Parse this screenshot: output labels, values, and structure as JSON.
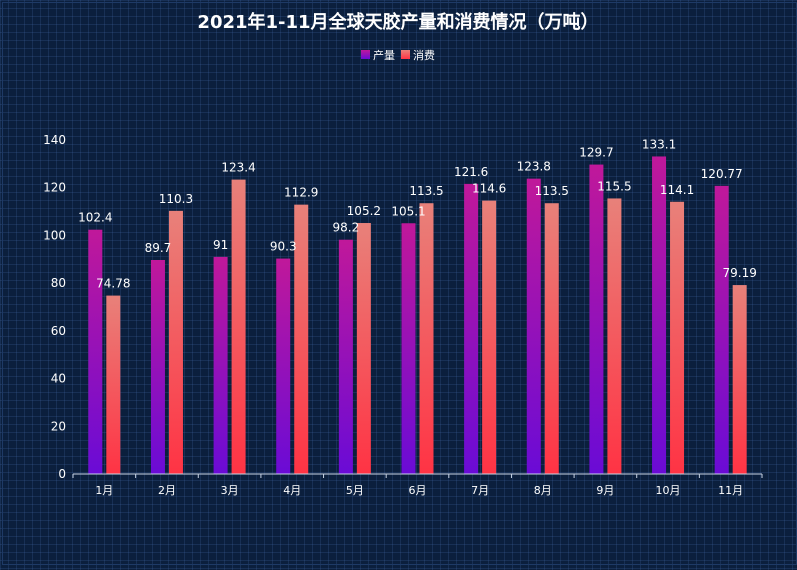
{
  "chart_data": {
    "type": "bar",
    "title": "2021年1-11月全球天胶产量和消费情况（万吨）",
    "categories": [
      "1月",
      "2月",
      "3月",
      "4月",
      "5月",
      "6月",
      "7月",
      "8月",
      "9月",
      "10月",
      "11月"
    ],
    "series": [
      {
        "name": "产量",
        "values": [
          102.4,
          89.7,
          91,
          90.3,
          98.2,
          105.1,
          121.6,
          123.8,
          129.7,
          133.1,
          120.77
        ],
        "color_top": "#c0189a",
        "color_bottom": "#6a0bd6"
      },
      {
        "name": "消费",
        "values": [
          74.78,
          110.3,
          123.4,
          112.9,
          105.2,
          113.5,
          114.6,
          113.5,
          115.5,
          114.1,
          79.19
        ],
        "color_top": "#e8817a",
        "color_bottom": "#ff3344"
      }
    ],
    "ylim": [
      0,
      140
    ],
    "yticks": [
      0,
      20,
      40,
      60,
      80,
      100,
      120,
      140
    ],
    "xlabel": "",
    "ylabel": "",
    "legend_position": "top-center",
    "grid": false
  }
}
